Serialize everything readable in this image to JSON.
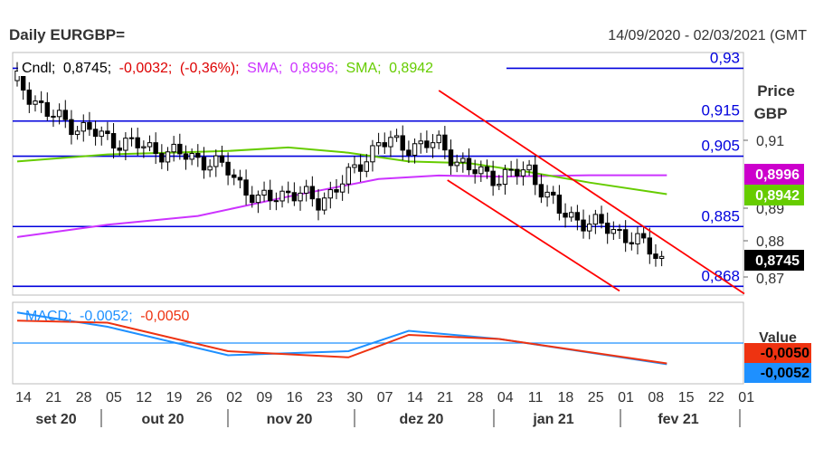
{
  "header": {
    "title": "Daily EURGBP=",
    "date_range": "14/09/2020 - 02/03/2021 (GMT"
  },
  "legend": {
    "cndl_label": "Cndl;",
    "cndl_close": "0,8745;",
    "cndl_change": "-0,0032;",
    "cndl_change_pct": "(-0,36%);",
    "sma1_label": "SMA;",
    "sma1_value": "0,8996;",
    "sma2_label": "SMA;",
    "sma2_value": "0,8942"
  },
  "macd_legend": {
    "label": "MACD;",
    "macd_value": "-0,0052;",
    "signal_value": "-0,0050"
  },
  "price_axis": {
    "title_line1": "Price",
    "title_line2": "GBP",
    "ticks": [
      "0,91",
      "0,89",
      "0,88",
      "0,87"
    ]
  },
  "macd_axis": {
    "title": "Value"
  },
  "value_tags": {
    "sma1": "0,8996",
    "sma2": "0,8942",
    "close": "0,8745",
    "signal": "-0,0050",
    "macd": "-0,0052"
  },
  "colors": {
    "up": "#ffffff",
    "down": "#000000",
    "sma_slow": "#cc33ff",
    "sma_fast": "#66cc00",
    "level_line": "#0000dd",
    "channel": "#ff0000",
    "macd": "#1e90ff",
    "signal": "#ee3311",
    "axis_text": "#333333"
  },
  "x_axis": {
    "day_ticks": [
      "14",
      "21",
      "28",
      "05",
      "12",
      "19",
      "26",
      "02",
      "09",
      "16",
      "23",
      "30",
      "07",
      "14",
      "21",
      "28",
      "04",
      "11",
      "18",
      "25",
      "01",
      "08",
      "15",
      "22",
      "01"
    ],
    "month_labels": [
      "set 20",
      "out 20",
      "nov 20",
      "dez 20",
      "jan 21",
      "fev 21"
    ]
  },
  "chart_data": {
    "type": "candlestick",
    "y_range": [
      0.8655,
      0.9345
    ],
    "horizontal_levels": [
      {
        "value": 0.93,
        "label": "0,93"
      },
      {
        "value": 0.915,
        "label": "0,915"
      },
      {
        "value": 0.905,
        "label": "0,905"
      },
      {
        "value": 0.885,
        "label": "0,885"
      },
      {
        "value": 0.868,
        "label": "0,868"
      }
    ],
    "trend_channel": {
      "upper": [
        {
          "date": "2020-12-21",
          "value": 0.9237
        },
        {
          "date": "2021-03-02",
          "value": 0.8659
        }
      ],
      "lower": [
        {
          "date": "2020-12-23",
          "value": 0.8982
        },
        {
          "date": "2021-02-01",
          "value": 0.8667
        }
      ]
    },
    "close_series": [
      {
        "date": "2020-09-14",
        "close": 0.9265
      },
      {
        "date": "2020-09-21",
        "close": 0.917
      },
      {
        "date": "2020-09-28",
        "close": 0.9135
      },
      {
        "date": "2020-10-05",
        "close": 0.91
      },
      {
        "date": "2020-10-12",
        "close": 0.908
      },
      {
        "date": "2020-10-19",
        "close": 0.906
      },
      {
        "date": "2020-10-26",
        "close": 0.9045
      },
      {
        "date": "2020-11-02",
        "close": 0.901
      },
      {
        "date": "2020-11-09",
        "close": 0.892
      },
      {
        "date": "2020-11-16",
        "close": 0.895
      },
      {
        "date": "2020-11-23",
        "close": 0.892
      },
      {
        "date": "2020-11-30",
        "close": 0.899
      },
      {
        "date": "2020-12-07",
        "close": 0.909
      },
      {
        "date": "2020-12-14",
        "close": 0.908
      },
      {
        "date": "2020-12-21",
        "close": 0.9085
      },
      {
        "date": "2020-12-28",
        "close": 0.901
      },
      {
        "date": "2021-01-04",
        "close": 0.899
      },
      {
        "date": "2021-01-11",
        "close": 0.901
      },
      {
        "date": "2021-01-18",
        "close": 0.889
      },
      {
        "date": "2021-01-25",
        "close": 0.886
      },
      {
        "date": "2021-02-01",
        "close": 0.8835
      },
      {
        "date": "2021-02-08",
        "close": 0.8785
      },
      {
        "date": "2021-02-12",
        "close": 0.8745
      }
    ],
    "sma_slow_series": [
      {
        "date": "2020-09-14",
        "value": 0.882
      },
      {
        "date": "2020-10-05",
        "value": 0.8855
      },
      {
        "date": "2020-10-26",
        "value": 0.888
      },
      {
        "date": "2020-11-16",
        "value": 0.8935
      },
      {
        "date": "2020-12-07",
        "value": 0.8985
      },
      {
        "date": "2020-12-21",
        "value": 0.8995
      },
      {
        "date": "2021-01-04",
        "value": 0.8992
      },
      {
        "date": "2021-01-25",
        "value": 0.8996
      },
      {
        "date": "2021-02-12",
        "value": 0.8996
      }
    ],
    "sma_fast_series": [
      {
        "date": "2020-09-14",
        "value": 0.9035
      },
      {
        "date": "2020-10-05",
        "value": 0.9055
      },
      {
        "date": "2020-10-19",
        "value": 0.906
      },
      {
        "date": "2020-11-02",
        "value": 0.9065
      },
      {
        "date": "2020-11-16",
        "value": 0.9075
      },
      {
        "date": "2020-11-30",
        "value": 0.906
      },
      {
        "date": "2020-12-14",
        "value": 0.9035
      },
      {
        "date": "2020-12-28",
        "value": 0.903
      },
      {
        "date": "2021-01-11",
        "value": 0.9005
      },
      {
        "date": "2021-01-25",
        "value": 0.8975
      },
      {
        "date": "2021-02-12",
        "value": 0.8942
      }
    ],
    "macd_series": [
      {
        "date": "2020-09-14",
        "macd": 0.0075,
        "signal": 0.0055
      },
      {
        "date": "2020-10-05",
        "macd": 0.004,
        "signal": 0.005
      },
      {
        "date": "2020-11-02",
        "macd": -0.003,
        "signal": -0.002
      },
      {
        "date": "2020-11-30",
        "macd": -0.002,
        "signal": -0.0035
      },
      {
        "date": "2020-12-14",
        "macd": 0.003,
        "signal": 0.002
      },
      {
        "date": "2021-01-04",
        "macd": 0.001,
        "signal": 0.001
      },
      {
        "date": "2021-02-12",
        "macd": -0.0052,
        "signal": -0.005
      }
    ]
  }
}
